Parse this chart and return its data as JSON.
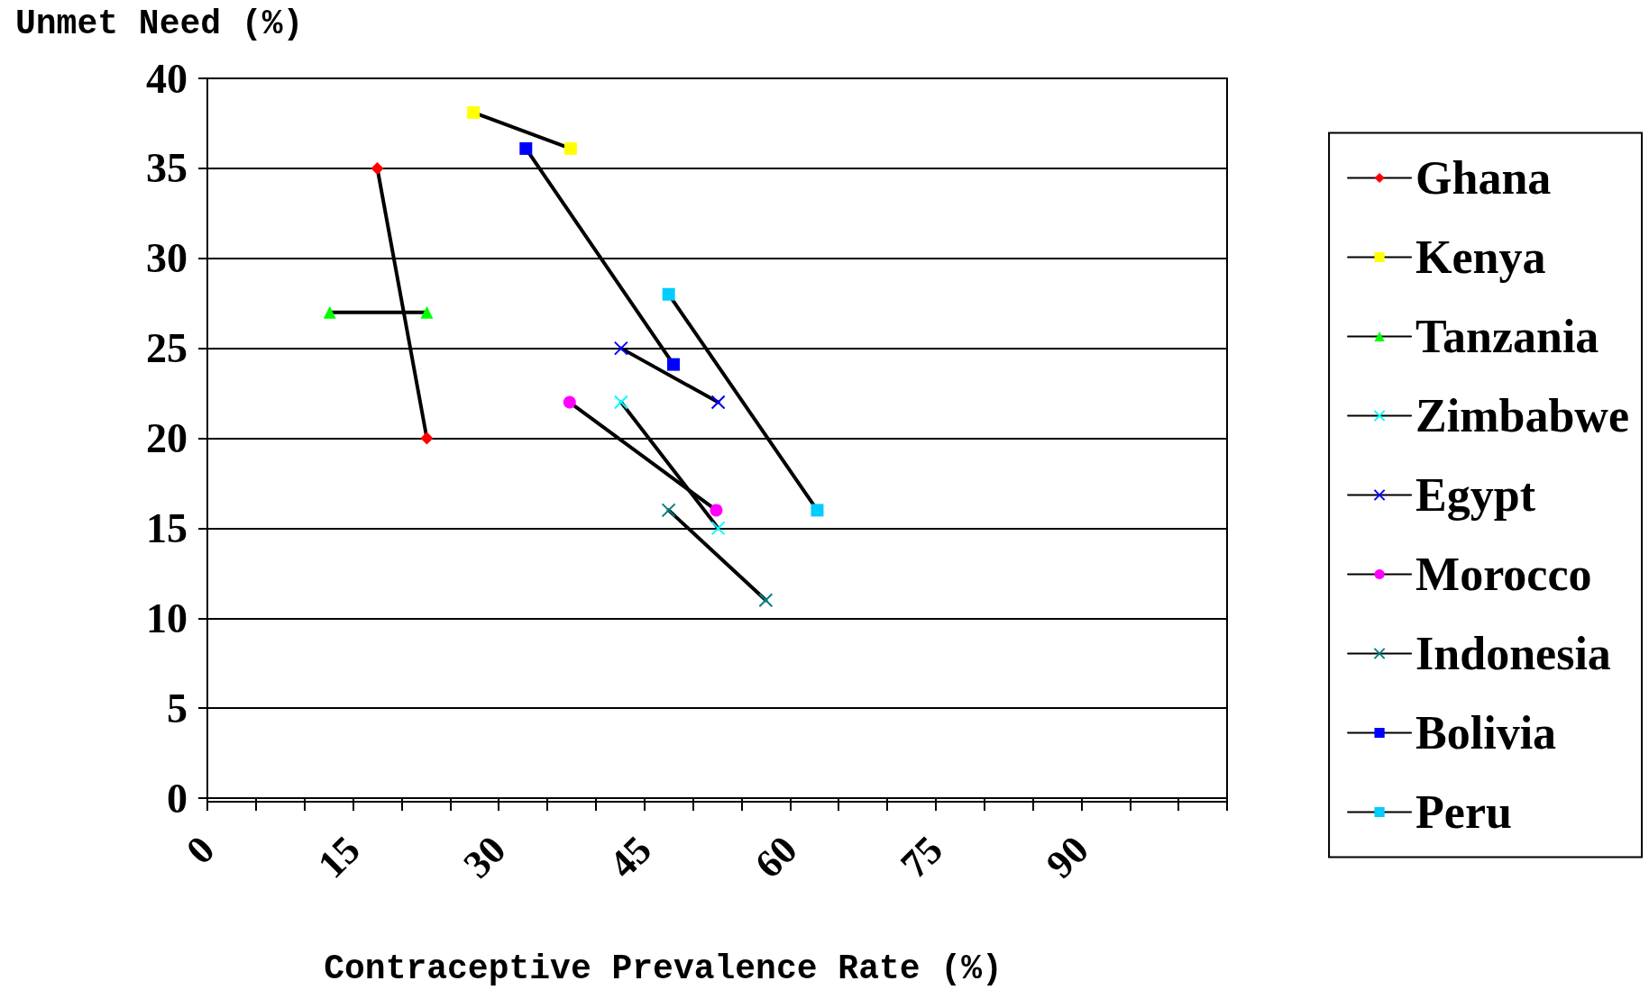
{
  "chart_data": {
    "type": "line",
    "xlabel": "Contraceptive Prevalence Rate (%)",
    "ylabel": "Unmet Need (%)",
    "xlim": [
      0,
      105
    ],
    "xticks": [
      0,
      {
        "value": 5,
        "label": null
      },
      {
        "value": 10,
        "label": null
      },
      15,
      {
        "value": 20,
        "label": null
      },
      {
        "value": 25,
        "label": null
      },
      30,
      {
        "value": 35,
        "label": null
      },
      {
        "value": 40,
        "label": null
      },
      45,
      {
        "value": 50,
        "label": null
      },
      {
        "value": 55,
        "label": null
      },
      60,
      {
        "value": 65,
        "label": null
      },
      {
        "value": 70,
        "label": null
      },
      75,
      {
        "value": 80,
        "label": null
      },
      {
        "value": 85,
        "label": null
      },
      90,
      {
        "value": 95,
        "label": null
      },
      {
        "value": 100,
        "label": null
      },
      {
        "value": 105,
        "label": null
      }
    ],
    "ylim": [
      0,
      40
    ],
    "yticks": [
      0,
      5,
      10,
      15,
      20,
      25,
      30,
      35,
      40
    ],
    "grid": "y",
    "legend": "right",
    "series": [
      {
        "name": "Ghana",
        "color": "#ff0000",
        "marker": "diamond",
        "x": [
          17.5,
          22.6
        ],
        "values": [
          35,
          20
        ]
      },
      {
        "name": "Kenya",
        "color": "#ffff00",
        "marker": "square",
        "x": [
          27.4,
          37.4
        ],
        "values": [
          38.1,
          36.1
        ]
      },
      {
        "name": "Tanzania",
        "color": "#00ff00",
        "marker": "triangle",
        "x": [
          12.6,
          22.6
        ],
        "values": [
          27,
          27
        ]
      },
      {
        "name": "Zimbabwe",
        "color": "#00ffff",
        "marker": "cross",
        "x": [
          42.6,
          52.6
        ],
        "values": [
          22,
          15
        ]
      },
      {
        "name": "Egypt",
        "color": "#0000ff",
        "marker": "cross",
        "x": [
          42.6,
          52.6
        ],
        "values": [
          25,
          22
        ]
      },
      {
        "name": "Morocco",
        "color": "#ff00ff",
        "marker": "circle",
        "x": [
          37.3,
          52.4
        ],
        "values": [
          22,
          16
        ]
      },
      {
        "name": "Indonesia",
        "color": "#008080",
        "marker": "cross",
        "x": [
          47.5,
          57.5
        ],
        "values": [
          16,
          11
        ]
      },
      {
        "name": "Bolivia",
        "color": "#0000ff",
        "marker": "square",
        "x": [
          32.8,
          48
        ],
        "values": [
          36.1,
          24.1
        ]
      },
      {
        "name": "Peru",
        "color": "#00ccff",
        "marker": "square",
        "x": [
          47.5,
          62.8
        ],
        "values": [
          28,
          16
        ]
      }
    ]
  }
}
